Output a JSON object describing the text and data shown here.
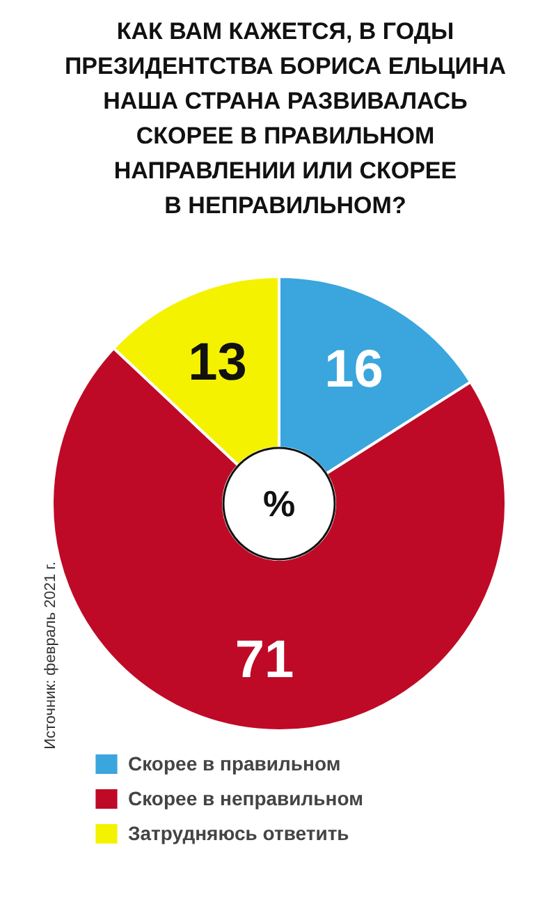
{
  "chart_data": {
    "type": "donut",
    "title": "КАК ВАМ КАЖЕТСЯ, В ГОДЫ\nПРЕЗИДЕНТСТВА БОРИСА ЕЛЬЦИНА\nНАША СТРАНА РАЗВИВАЛАСЬ\nСКОРЕЕ В ПРАВИЛЬНОМ\nНАПРАВЛЕНИИ ИЛИ СКОРЕЕ\nВ НЕПРАВИЛЬНОМ?",
    "categories": [
      "Скорее в правильном",
      "Скорее в неправильном",
      "Затрудняюсь ответить"
    ],
    "values": [
      16,
      71,
      13
    ],
    "colors": [
      "#3aa6dd",
      "#be0a26",
      "#f5f200"
    ],
    "data_labels": true,
    "legend": "bottom",
    "annotations": [
      "%",
      "Источник: февраль 2021 г."
    ]
  }
}
